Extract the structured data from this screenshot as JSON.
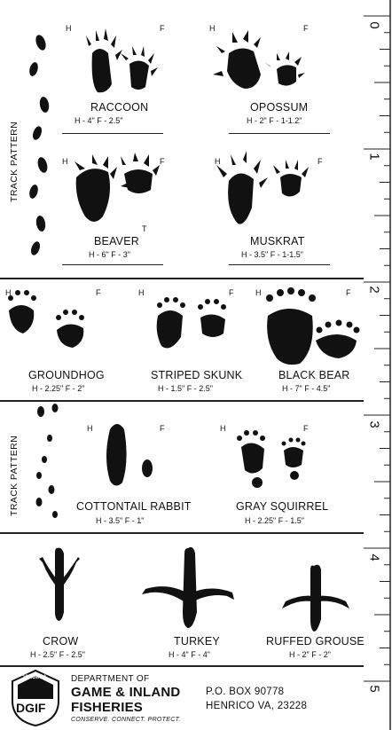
{
  "labels": {
    "hind": "H",
    "fore": "F",
    "track_pattern": "TRACK PATTERN",
    "beaver_tail": "T"
  },
  "ruler": {
    "numbers": [
      "0",
      "1",
      "2",
      "3",
      "4",
      "5"
    ]
  },
  "animals": [
    {
      "name": "RACCOON",
      "size": "H - 4\"  F - 2.5\""
    },
    {
      "name": "OPOSSUM",
      "size": "H - 2\"  F - 1-1.2\""
    },
    {
      "name": "BEAVER",
      "size": "H - 6\"  F - 3\""
    },
    {
      "name": "MUSKRAT",
      "size": "H - 3.5\"  F - 1-1.5\""
    },
    {
      "name": "GROUNDHOG",
      "size": "H - 2.25\"  F - 2\""
    },
    {
      "name": "STRIPED SKUNK",
      "size": "H - 1.5\"  F - 2.5\""
    },
    {
      "name": "BLACK BEAR",
      "size": "H - 7\"  F - 4.5\""
    },
    {
      "name": "COTTONTAIL RABBIT",
      "size": "H - 3.5\"  F - 1\""
    },
    {
      "name": "GRAY SQUIRREL",
      "size": "H - 2.25\"  F - 1.5\""
    },
    {
      "name": "CROW",
      "size": "H - 2.5\"  F - 2.5\""
    },
    {
      "name": "TURKEY",
      "size": "H - 4\"  F - 4\""
    },
    {
      "name": "RUFFED GROUSE",
      "size": "H - 2\"  F - 2\""
    }
  ],
  "footer": {
    "logo_state": "VIRGINIA",
    "logo_abbr": "DGIF",
    "dept_line": "DEPARTMENT OF",
    "agency_line1": "GAME & INLAND",
    "agency_line2": "FISHERIES",
    "tagline": "CONSERVE. CONNECT. PROTECT.",
    "address_line1": "P.O. BOX 90778",
    "address_line2": "HENRICO VA, 23228"
  }
}
